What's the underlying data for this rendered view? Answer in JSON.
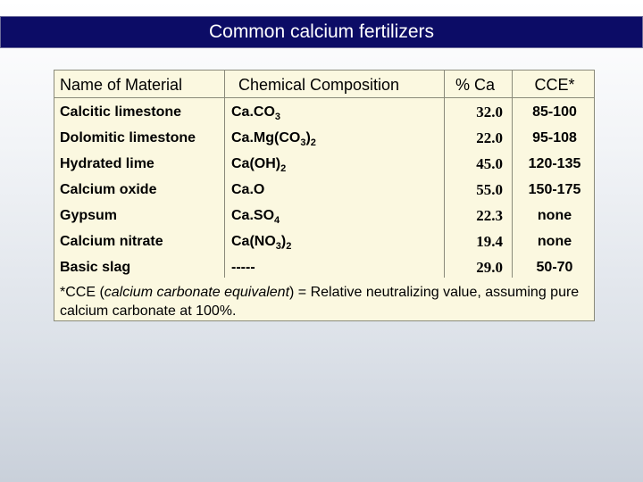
{
  "title": "Common calcium fertilizers",
  "table": {
    "headers": [
      "Name of Material",
      "Chemical Composition",
      "% Ca",
      "CCE*"
    ],
    "rows": [
      {
        "name": "Calcitic limestone",
        "formula": [
          {
            "t": "Ca.CO"
          },
          {
            "s": "3"
          }
        ],
        "ca": "32.0",
        "cce": "85-100"
      },
      {
        "name": "Dolomitic limestone",
        "formula": [
          {
            "t": "Ca.Mg(CO"
          },
          {
            "s": "3"
          },
          {
            "t": ")"
          },
          {
            "s": "2"
          }
        ],
        "ca": "22.0",
        "cce": "95-108"
      },
      {
        "name": "Hydrated lime",
        "formula": [
          {
            "t": "Ca(OH)"
          },
          {
            "s": "2"
          }
        ],
        "ca": "45.0",
        "cce": "120-135"
      },
      {
        "name": "Calcium oxide",
        "formula": [
          {
            "t": "Ca.O"
          }
        ],
        "ca": "55.0",
        "cce": "150-175"
      },
      {
        "name": "Gypsum",
        "formula": [
          {
            "t": "Ca.SO"
          },
          {
            "s": "4"
          }
        ],
        "ca": "22.3",
        "cce": "none"
      },
      {
        "name": "Calcium nitrate",
        "formula": [
          {
            "t": "Ca(NO"
          },
          {
            "s": "3"
          },
          {
            "t": ")"
          },
          {
            "s": "2"
          }
        ],
        "ca": "19.4",
        "cce": "none"
      },
      {
        "name": "Basic slag",
        "formula": [
          {
            "t": "-----"
          }
        ],
        "ca": "29.0",
        "cce": "50-70"
      }
    ]
  },
  "footnote": {
    "prefix": "*CCE (",
    "italic": "calcium carbonate equivalent",
    "suffix": ") = Relative neutralizing value, assuming pure calcium carbonate at 100%."
  }
}
